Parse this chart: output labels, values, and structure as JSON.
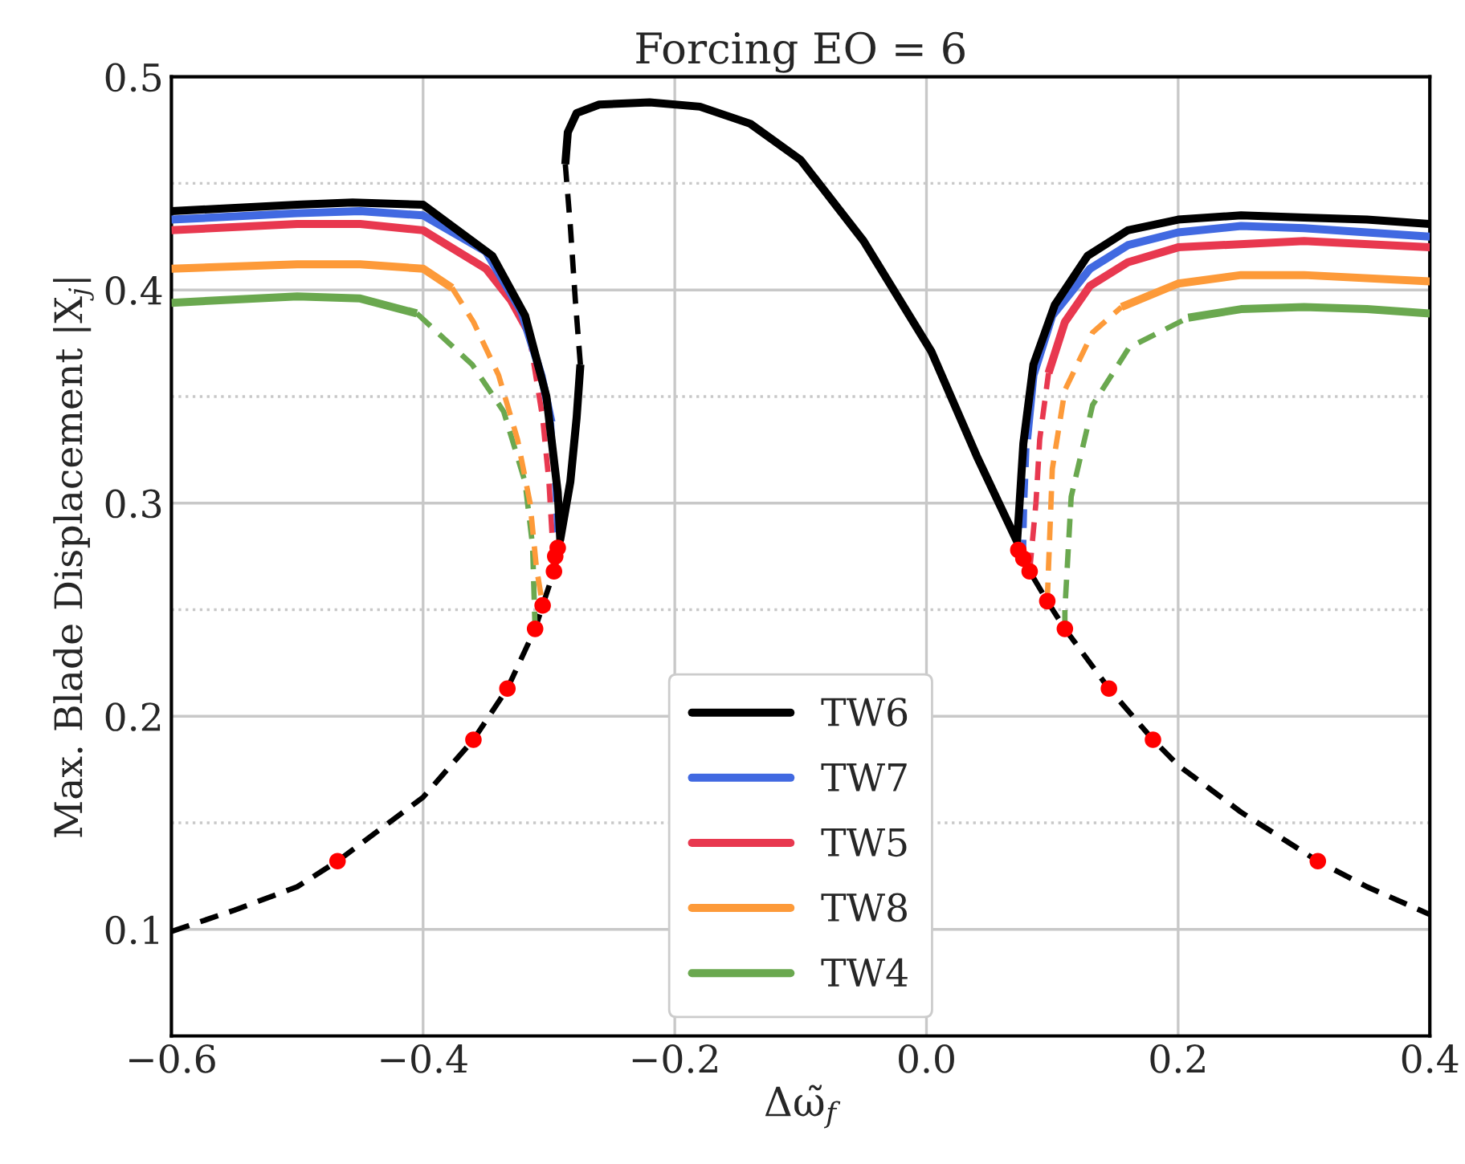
{
  "chart_data": {
    "type": "line",
    "title": "Forcing EO = 6",
    "xlabel": "Δω̃$_{f}$",
    "ylabel": "Max. Blade Displacement |X$_{j}$|",
    "xlim": [
      -0.6,
      0.4
    ],
    "ylim": [
      0.05,
      0.5
    ],
    "xticks": [
      {
        "value": -0.6,
        "label": "−0.6"
      },
      {
        "value": -0.4,
        "label": "−0.4"
      },
      {
        "value": -0.2,
        "label": "−0.2"
      },
      {
        "value": 0.0,
        "label": "0.0"
      },
      {
        "value": 0.2,
        "label": "0.2"
      },
      {
        "value": 0.4,
        "label": "0.4"
      }
    ],
    "yticks": [
      0.1,
      {
        "value": 0.15,
        "label": null
      },
      0.2,
      {
        "value": 0.25,
        "label": null
      },
      0.3,
      {
        "value": 0.35,
        "label": null
      },
      0.4,
      {
        "value": 0.45,
        "label": null
      },
      0.5
    ],
    "grid": true,
    "legend": "bottom",
    "series": [
      {
        "name": "TW6",
        "color": "#000000",
        "line_style": "solid",
        "x": [
          -0.6,
          -0.5,
          -0.456,
          -0.4,
          -0.345,
          -0.319,
          -0.302,
          -0.293,
          -0.291,
          -0.283,
          -0.278,
          -0.275
        ],
        "values": [
          0.437,
          0.44,
          0.441,
          0.44,
          0.416,
          0.388,
          0.35,
          0.305,
          0.283,
          0.31,
          0.34,
          0.365
        ]
      },
      {
        "color": "#000000",
        "line_style": "dashed",
        "x": [
          -0.275,
          -0.279,
          -0.283,
          -0.287
        ],
        "values": [
          0.365,
          0.395,
          0.43,
          0.459
        ]
      },
      {
        "color": "#000000",
        "line_style": "solid",
        "x": [
          -0.287,
          -0.285,
          -0.278,
          -0.26,
          -0.22,
          -0.18,
          -0.14,
          -0.1,
          -0.05,
          0.004,
          0.04,
          0.072,
          0.074,
          0.077,
          0.085,
          0.102,
          0.128,
          0.16,
          0.2,
          0.25,
          0.3,
          0.35,
          0.4
        ],
        "values": [
          0.459,
          0.474,
          0.483,
          0.487,
          0.488,
          0.486,
          0.478,
          0.461,
          0.423,
          0.371,
          0.322,
          0.282,
          0.3,
          0.328,
          0.365,
          0.393,
          0.416,
          0.428,
          0.433,
          0.435,
          0.434,
          0.433,
          0.431
        ]
      },
      {
        "name": "TW7",
        "color": "#4169e1",
        "line_style": "solid",
        "x": [
          -0.6,
          -0.5,
          -0.45,
          -0.4,
          -0.35,
          -0.322,
          -0.306,
          -0.298
        ],
        "values": [
          0.433,
          0.436,
          0.437,
          0.435,
          0.418,
          0.39,
          0.36,
          0.338
        ]
      },
      {
        "color": "#4169e1",
        "line_style": "dashed",
        "x": [
          -0.298,
          -0.295,
          -0.293
        ],
        "values": [
          0.338,
          0.305,
          0.279
        ]
      },
      {
        "color": "#4169e1",
        "line_style": "dashed",
        "x": [
          0.077,
          0.078,
          0.08
        ],
        "values": [
          0.274,
          0.3,
          0.33
        ]
      },
      {
        "color": "#4169e1",
        "line_style": "solid",
        "x": [
          0.08,
          0.085,
          0.1,
          0.13,
          0.16,
          0.2,
          0.25,
          0.3,
          0.4
        ],
        "values": [
          0.33,
          0.36,
          0.388,
          0.41,
          0.421,
          0.427,
          0.43,
          0.429,
          0.425
        ]
      },
      {
        "name": "TW5",
        "color": "#e8384f",
        "line_style": "solid",
        "x": [
          -0.6,
          -0.5,
          -0.45,
          -0.4,
          -0.35,
          -0.33,
          -0.316
        ],
        "values": [
          0.428,
          0.431,
          0.431,
          0.428,
          0.41,
          0.395,
          0.38
        ]
      },
      {
        "color": "#e8384f",
        "line_style": "dashed",
        "x": [
          -0.316,
          -0.305,
          -0.3,
          -0.297,
          -0.296
        ],
        "values": [
          0.38,
          0.34,
          0.31,
          0.28,
          0.268
        ]
      },
      {
        "color": "#e8384f",
        "line_style": "dashed",
        "x": [
          0.082,
          0.087,
          0.09,
          0.097
        ],
        "values": [
          0.268,
          0.3,
          0.33,
          0.361
        ]
      },
      {
        "color": "#e8384f",
        "line_style": "solid",
        "x": [
          0.097,
          0.11,
          0.13,
          0.16,
          0.2,
          0.3,
          0.4
        ],
        "values": [
          0.361,
          0.385,
          0.402,
          0.413,
          0.42,
          0.423,
          0.42
        ]
      },
      {
        "name": "TW8",
        "color": "#fd9a39",
        "line_style": "solid",
        "x": [
          -0.6,
          -0.5,
          -0.45,
          -0.4,
          -0.377
        ],
        "values": [
          0.41,
          0.412,
          0.412,
          0.41,
          0.401
        ]
      },
      {
        "color": "#fd9a39",
        "line_style": "dashed",
        "x": [
          -0.377,
          -0.36,
          -0.34,
          -0.325,
          -0.315,
          -0.31,
          -0.305
        ],
        "values": [
          0.401,
          0.385,
          0.36,
          0.33,
          0.3,
          0.27,
          0.252
        ]
      },
      {
        "color": "#fd9a39",
        "line_style": "dashed",
        "x": [
          0.096,
          0.097,
          0.1,
          0.11,
          0.132,
          0.155
        ],
        "values": [
          0.254,
          0.27,
          0.316,
          0.353,
          0.38,
          0.392
        ]
      },
      {
        "color": "#fd9a39",
        "line_style": "solid",
        "x": [
          0.155,
          0.2,
          0.25,
          0.3,
          0.4
        ],
        "values": [
          0.392,
          0.403,
          0.407,
          0.407,
          0.404
        ]
      },
      {
        "name": "TW4",
        "color": "#6aa84f",
        "line_style": "solid",
        "x": [
          -0.6,
          -0.5,
          -0.45,
          -0.405
        ],
        "values": [
          0.394,
          0.397,
          0.396,
          0.389
        ]
      },
      {
        "color": "#6aa84f",
        "line_style": "dashed",
        "x": [
          -0.405,
          -0.361,
          -0.336,
          -0.319,
          -0.313,
          -0.311
        ],
        "values": [
          0.389,
          0.365,
          0.343,
          0.31,
          0.28,
          0.241
        ]
      },
      {
        "color": "#6aa84f",
        "line_style": "dashed",
        "x": [
          0.11,
          0.11,
          0.115,
          0.132,
          0.161,
          0.208
        ],
        "values": [
          0.241,
          0.25,
          0.303,
          0.346,
          0.373,
          0.387
        ]
      },
      {
        "color": "#6aa84f",
        "line_style": "solid",
        "x": [
          0.208,
          0.25,
          0.3,
          0.35,
          0.4
        ],
        "values": [
          0.387,
          0.391,
          0.392,
          0.391,
          0.389
        ]
      },
      {
        "color": "#000000",
        "line_style": "dashed",
        "x": [
          -0.6,
          -0.55,
          -0.5,
          -0.468,
          -0.4,
          -0.36,
          -0.333,
          -0.311,
          -0.305,
          -0.296,
          -0.291
        ],
        "values": [
          0.099,
          0.109,
          0.12,
          0.132,
          0.162,
          0.189,
          0.213,
          0.241,
          0.252,
          0.268,
          0.28
        ]
      },
      {
        "color": "#000000",
        "line_style": "dashed",
        "x": [
          0.073,
          0.082,
          0.096,
          0.11,
          0.145,
          0.18,
          0.2,
          0.25,
          0.311,
          0.35,
          0.4
        ],
        "values": [
          0.278,
          0.268,
          0.254,
          0.241,
          0.213,
          0.189,
          0.177,
          0.155,
          0.132,
          0.12,
          0.107
        ]
      },
      {
        "type": "scatter",
        "marker": "circle",
        "color": "#ff0000",
        "x": [
          -0.468,
          -0.36,
          -0.333,
          -0.311,
          -0.305,
          -0.296,
          -0.295,
          -0.293,
          0.073,
          0.077,
          0.082,
          0.096,
          0.11,
          0.145,
          0.18,
          0.311
        ],
        "values": [
          0.132,
          0.189,
          0.213,
          0.241,
          0.252,
          0.268,
          0.275,
          0.279,
          0.278,
          0.274,
          0.268,
          0.254,
          0.241,
          0.213,
          0.189,
          0.132
        ]
      }
    ]
  }
}
